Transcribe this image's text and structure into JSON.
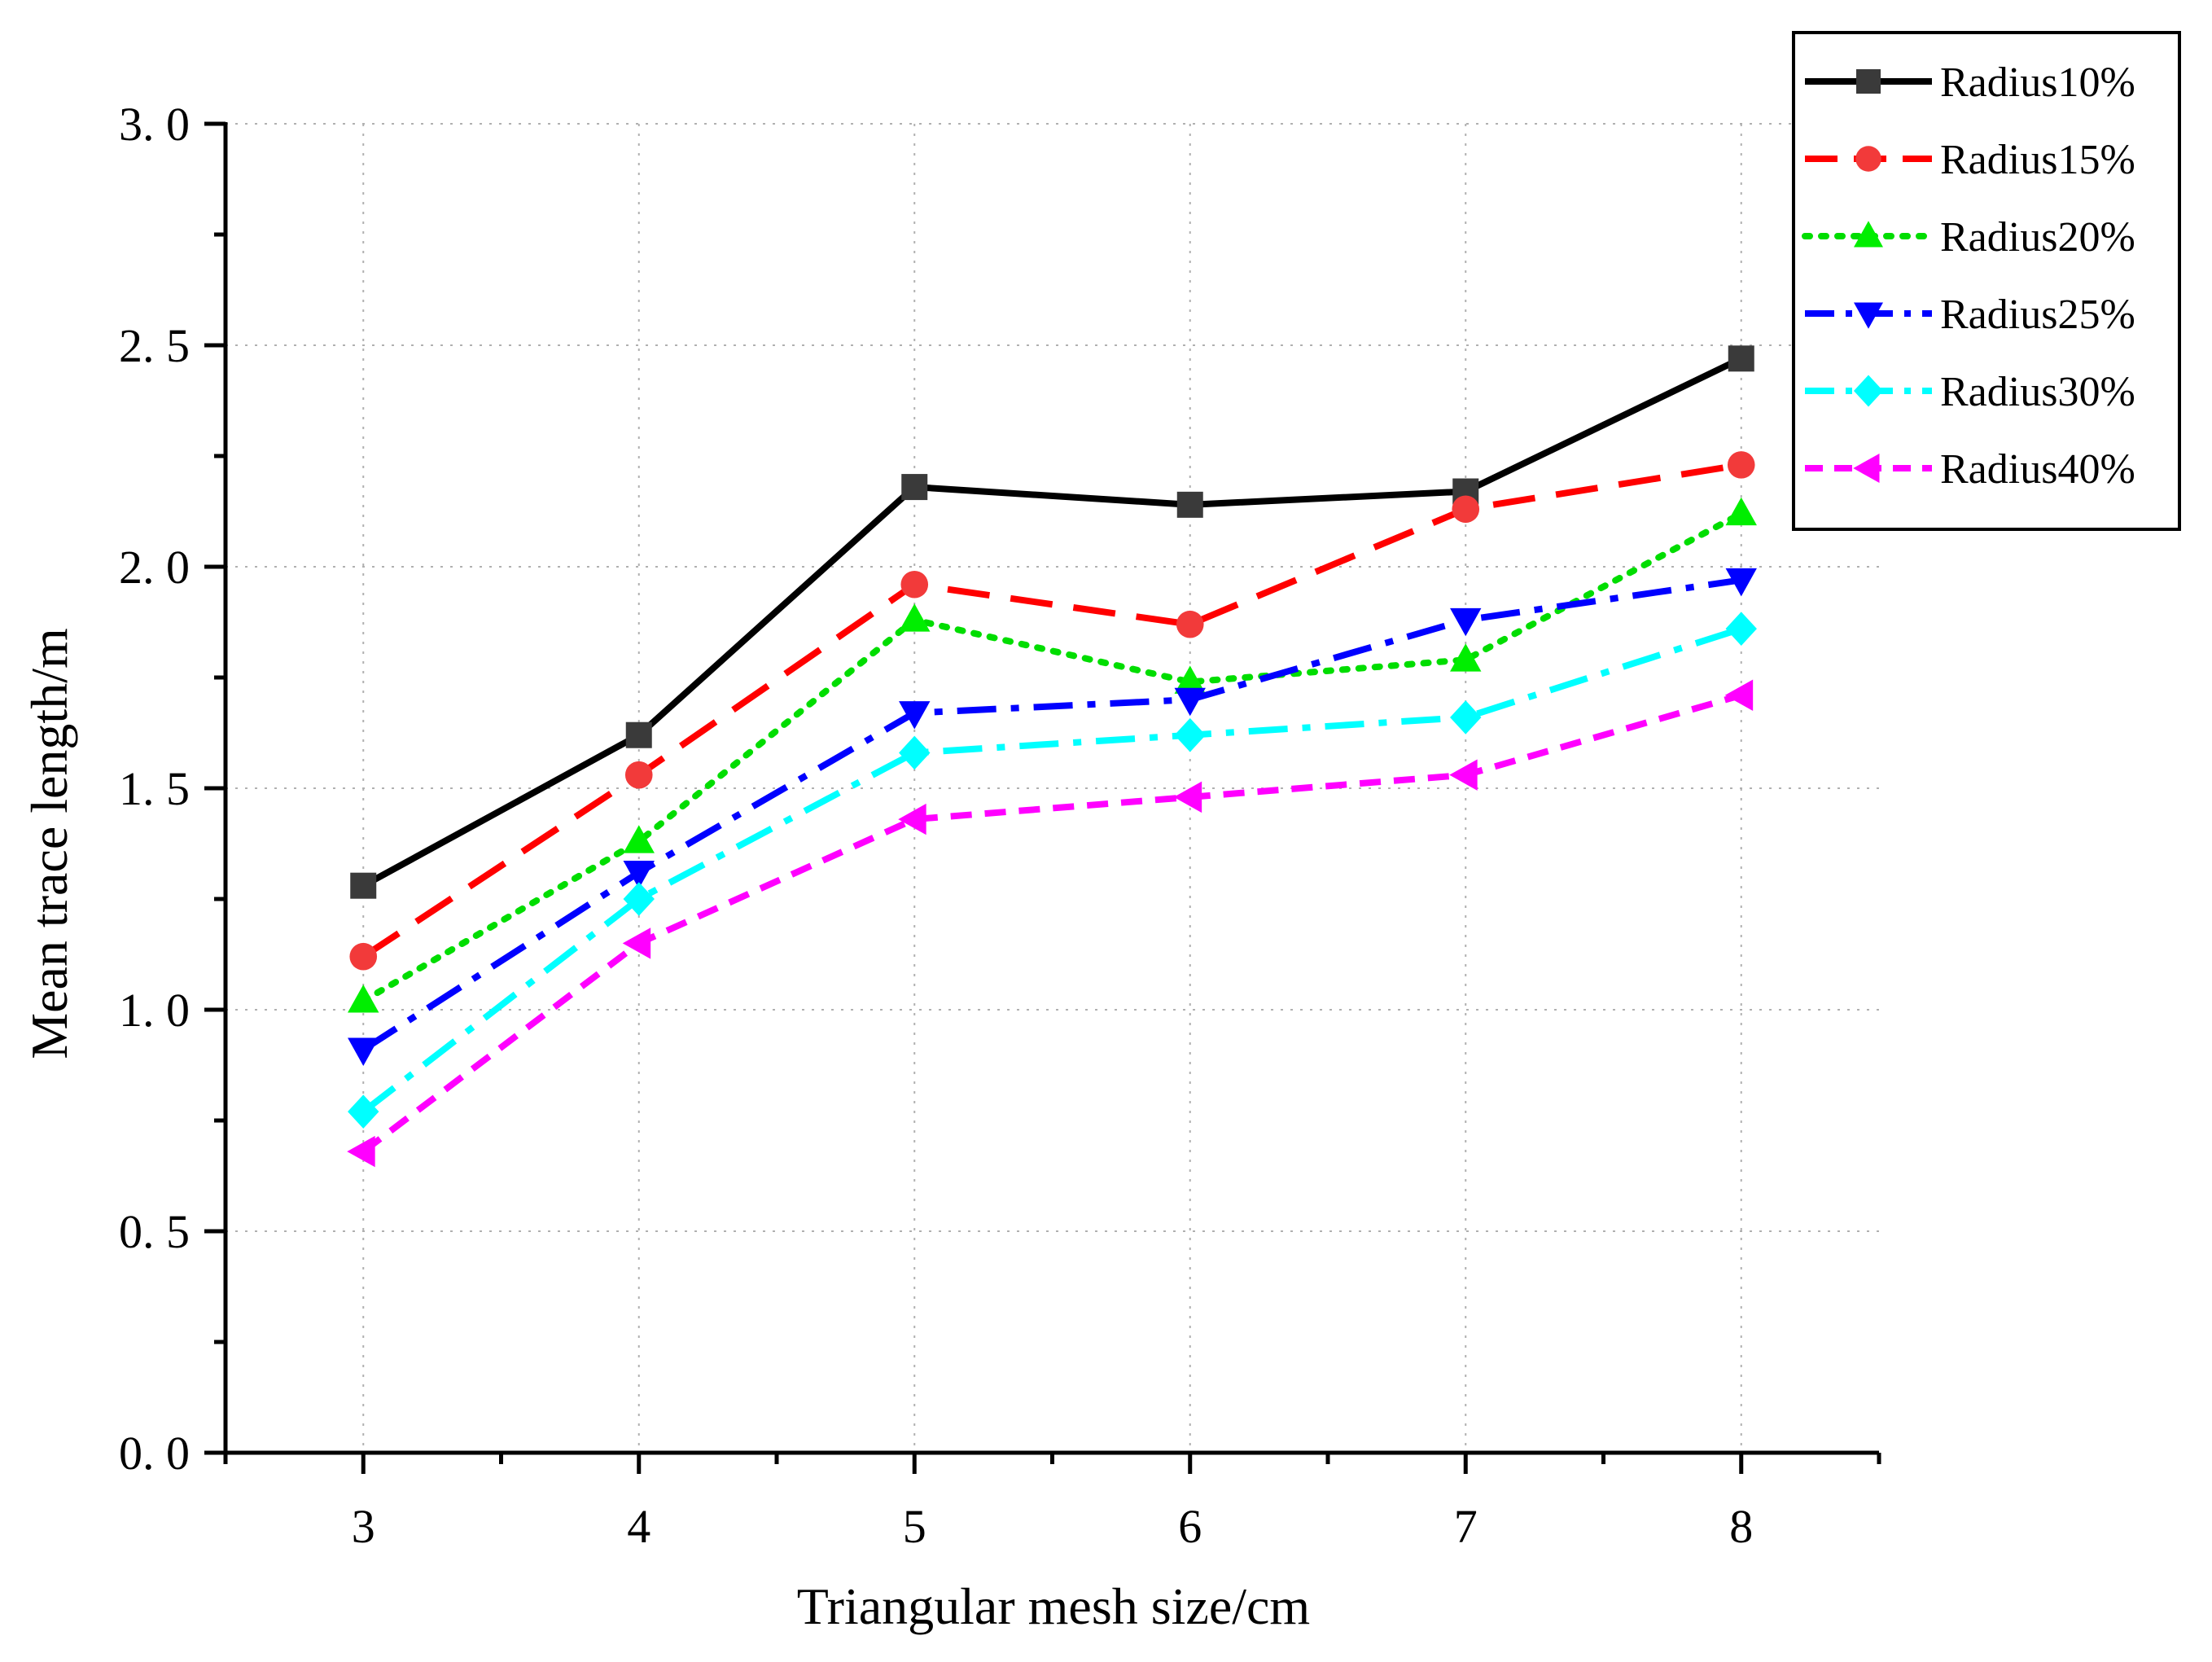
{
  "chart_data": {
    "type": "line",
    "title": "",
    "xlabel": "Triangular mesh size/cm",
    "ylabel": "Mean trace length/m",
    "x": [
      3,
      4,
      5,
      6,
      7,
      8
    ],
    "x_tick_labels": [
      "3",
      "4",
      "5",
      "6",
      "7",
      "8"
    ],
    "xlim": [
      2.5,
      8.5
    ],
    "ylim": [
      0.0,
      3.0
    ],
    "y_ticks": [
      0.0,
      0.5,
      1.0,
      1.5,
      2.0,
      2.5,
      3.0
    ],
    "y_tick_labels": [
      "0. 0",
      "0. 5",
      "1. 0",
      "1. 5",
      "2. 0",
      "2. 5",
      "3. 0"
    ],
    "grid": true,
    "legend_position": "top-right, outside plot",
    "series": [
      {
        "name": "Radius10%",
        "color": "#000000",
        "marker": "square",
        "marker_color": "#3a3a3a",
        "dash": "solid",
        "values": [
          1.28,
          1.62,
          2.18,
          2.14,
          2.17,
          2.47
        ]
      },
      {
        "name": "Radius15%",
        "color": "#ff0000",
        "marker": "circle",
        "marker_color": "#f23a3a",
        "dash": "dashed",
        "values": [
          1.12,
          1.53,
          1.96,
          1.87,
          2.13,
          2.23
        ]
      },
      {
        "name": "Radius20%",
        "color": "#00dd00",
        "marker": "triangle-up",
        "marker_color": "#00ee00",
        "dash": "dotted",
        "values": [
          1.02,
          1.38,
          1.88,
          1.74,
          1.79,
          2.12
        ]
      },
      {
        "name": "Radius25%",
        "color": "#0000ff",
        "marker": "triangle-down",
        "marker_color": "#0000ff",
        "dash": "dash-dot",
        "values": [
          0.91,
          1.31,
          1.67,
          1.7,
          1.88,
          1.97
        ]
      },
      {
        "name": "Radius30%",
        "color": "#00ffff",
        "marker": "diamond",
        "marker_color": "#00ffff",
        "dash": "dash-dot",
        "values": [
          0.77,
          1.25,
          1.58,
          1.62,
          1.66,
          1.86
        ]
      },
      {
        "name": "Radius40%",
        "color": "#ff00ff",
        "marker": "triangle-left",
        "marker_color": "#ff00ff",
        "dash": "short-dash",
        "values": [
          0.68,
          1.15,
          1.43,
          1.48,
          1.53,
          1.71
        ]
      }
    ]
  }
}
